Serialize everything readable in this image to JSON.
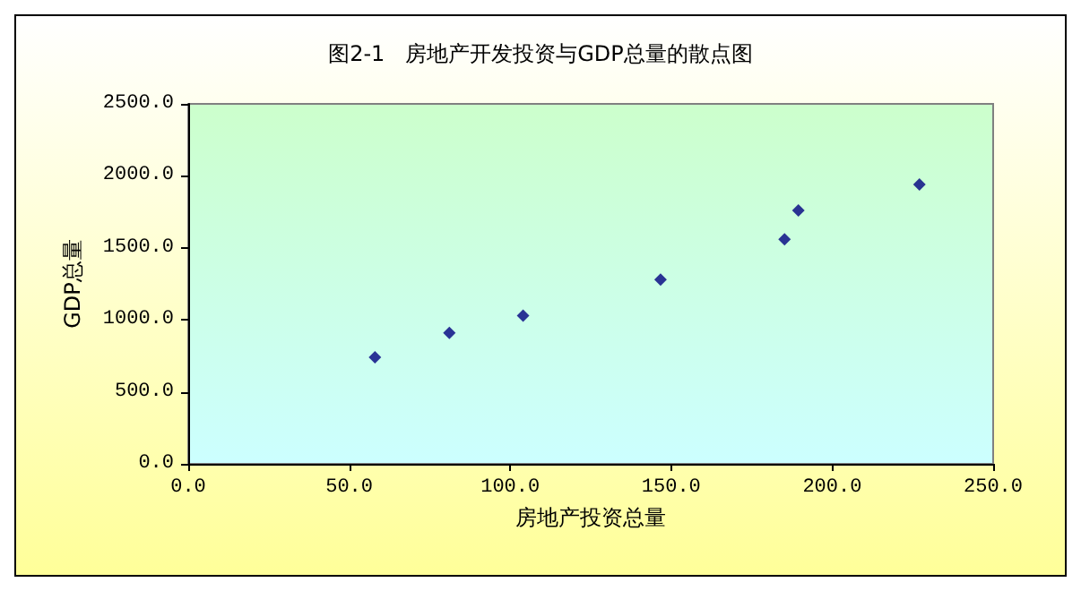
{
  "chart_data": {
    "type": "scatter",
    "title": "图2-1   房地产开发投资与GDP总量的散点图",
    "xlabel": "房地产投资总量",
    "ylabel": "GDP总量",
    "x": [
      58.0,
      81.1,
      104.0,
      146.7,
      185.2,
      189.5,
      227.1
    ],
    "values": [
      740,
      910,
      1030,
      1280,
      1560,
      1760,
      1940
    ],
    "color": "#000080",
    "marker": "diamond",
    "xlim": [
      0,
      250
    ],
    "xticks": [
      {
        "value": 0,
        "label": "0.0"
      },
      {
        "value": 50,
        "label": "50.0"
      },
      {
        "value": 100,
        "label": "100.0"
      },
      {
        "value": 150,
        "label": "150.0"
      },
      {
        "value": 200,
        "label": "200.0"
      },
      {
        "value": 250,
        "label": "250.0"
      }
    ],
    "ylim": [
      0,
      2500
    ],
    "yticks": [
      {
        "value": 0,
        "label": "0.0"
      },
      {
        "value": 500,
        "label": "500.0"
      },
      {
        "value": 1000,
        "label": "1000.0"
      },
      {
        "value": 1500,
        "label": "1500.0"
      },
      {
        "value": 2000,
        "label": "2000.0"
      },
      {
        "value": 2500,
        "label": "2500.0"
      }
    ],
    "grid": false
  }
}
